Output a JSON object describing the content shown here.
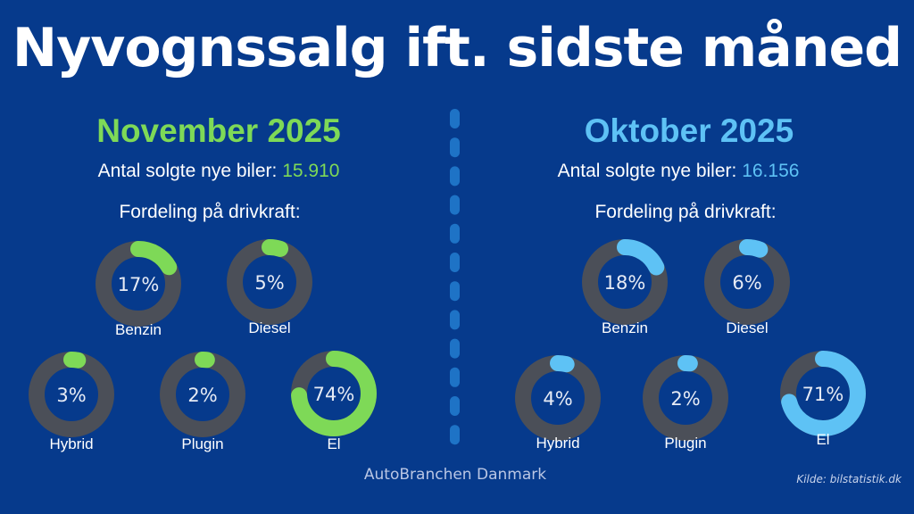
{
  "title": "Nyvognssalg ift. sidste måned",
  "colors": {
    "background": "#063a8c",
    "november_accent": "#7ed957",
    "oktober_accent": "#5ec2f5",
    "ring_track": "#4b4f58",
    "divider": "#1e73c6"
  },
  "left": {
    "month": "November 2025",
    "sold_label": "Antal solgte nye biler:",
    "sold_value": "15.910",
    "dist_label": "Fordeling på drivkraft:"
  },
  "right": {
    "month": "Oktober 2025",
    "sold_label": "Antal solgte nye biler:",
    "sold_value": "16.156",
    "dist_label": "Fordeling på drivkraft:"
  },
  "chart_data": [
    {
      "type": "pie",
      "title": "November 2025",
      "categories": [
        "Benzin",
        "Diesel",
        "Hybrid",
        "Plugin",
        "El"
      ],
      "values": [
        17,
        5,
        3,
        2,
        74
      ],
      "value_labels": [
        "17%",
        "5%",
        "3%",
        "2%",
        "74%"
      ],
      "unit": "%"
    },
    {
      "type": "pie",
      "title": "Oktober 2025",
      "categories": [
        "Benzin",
        "Diesel",
        "Hybrid",
        "Plugin",
        "El"
      ],
      "values": [
        18,
        6,
        4,
        2,
        71
      ],
      "value_labels": [
        "18%",
        "6%",
        "4%",
        "2%",
        "71%"
      ],
      "unit": "%"
    }
  ],
  "footer": "AutoBranchen Danmark",
  "source": "Kilde: bilstatistik.dk"
}
